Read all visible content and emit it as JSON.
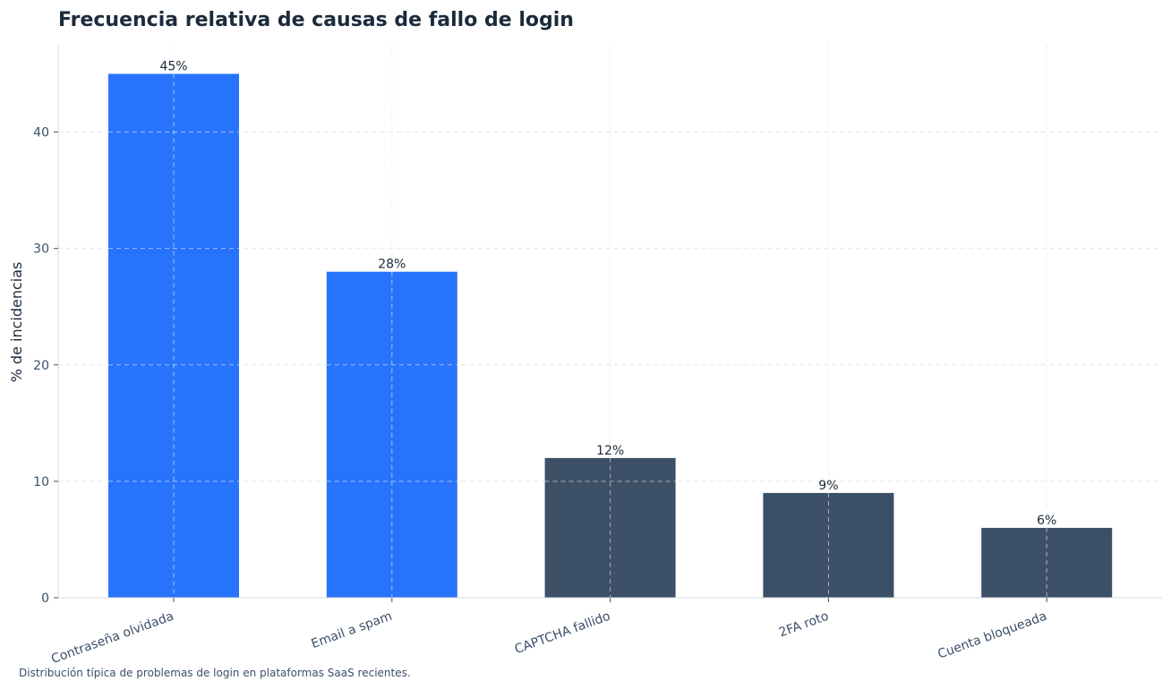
{
  "chart_data": {
    "type": "bar",
    "title": "Frecuencia relativa de causas de fallo de login",
    "ylabel": "% de incidencias",
    "xlabel": "",
    "categories": [
      "Contraseña olvidada",
      "Email a spam",
      "CAPTCHA fallido",
      "2FA roto",
      "Cuenta bloqueada"
    ],
    "values": [
      45,
      28,
      12,
      9,
      6
    ],
    "value_labels": [
      "45%",
      "28%",
      "12%",
      "9%",
      "6%"
    ],
    "bar_colors": [
      "#2873fb",
      "#2873fb",
      "#3b4f66",
      "#3b4f66",
      "#3b4f66"
    ],
    "ylim": [
      0,
      47.5
    ],
    "yticks": [
      0,
      10,
      20,
      30,
      40
    ],
    "ytick_labels": [
      "0",
      "10",
      "20",
      "30",
      "40"
    ],
    "grid": true
  },
  "caption": "Distribución típica de problemas de login en plataformas SaaS recientes."
}
